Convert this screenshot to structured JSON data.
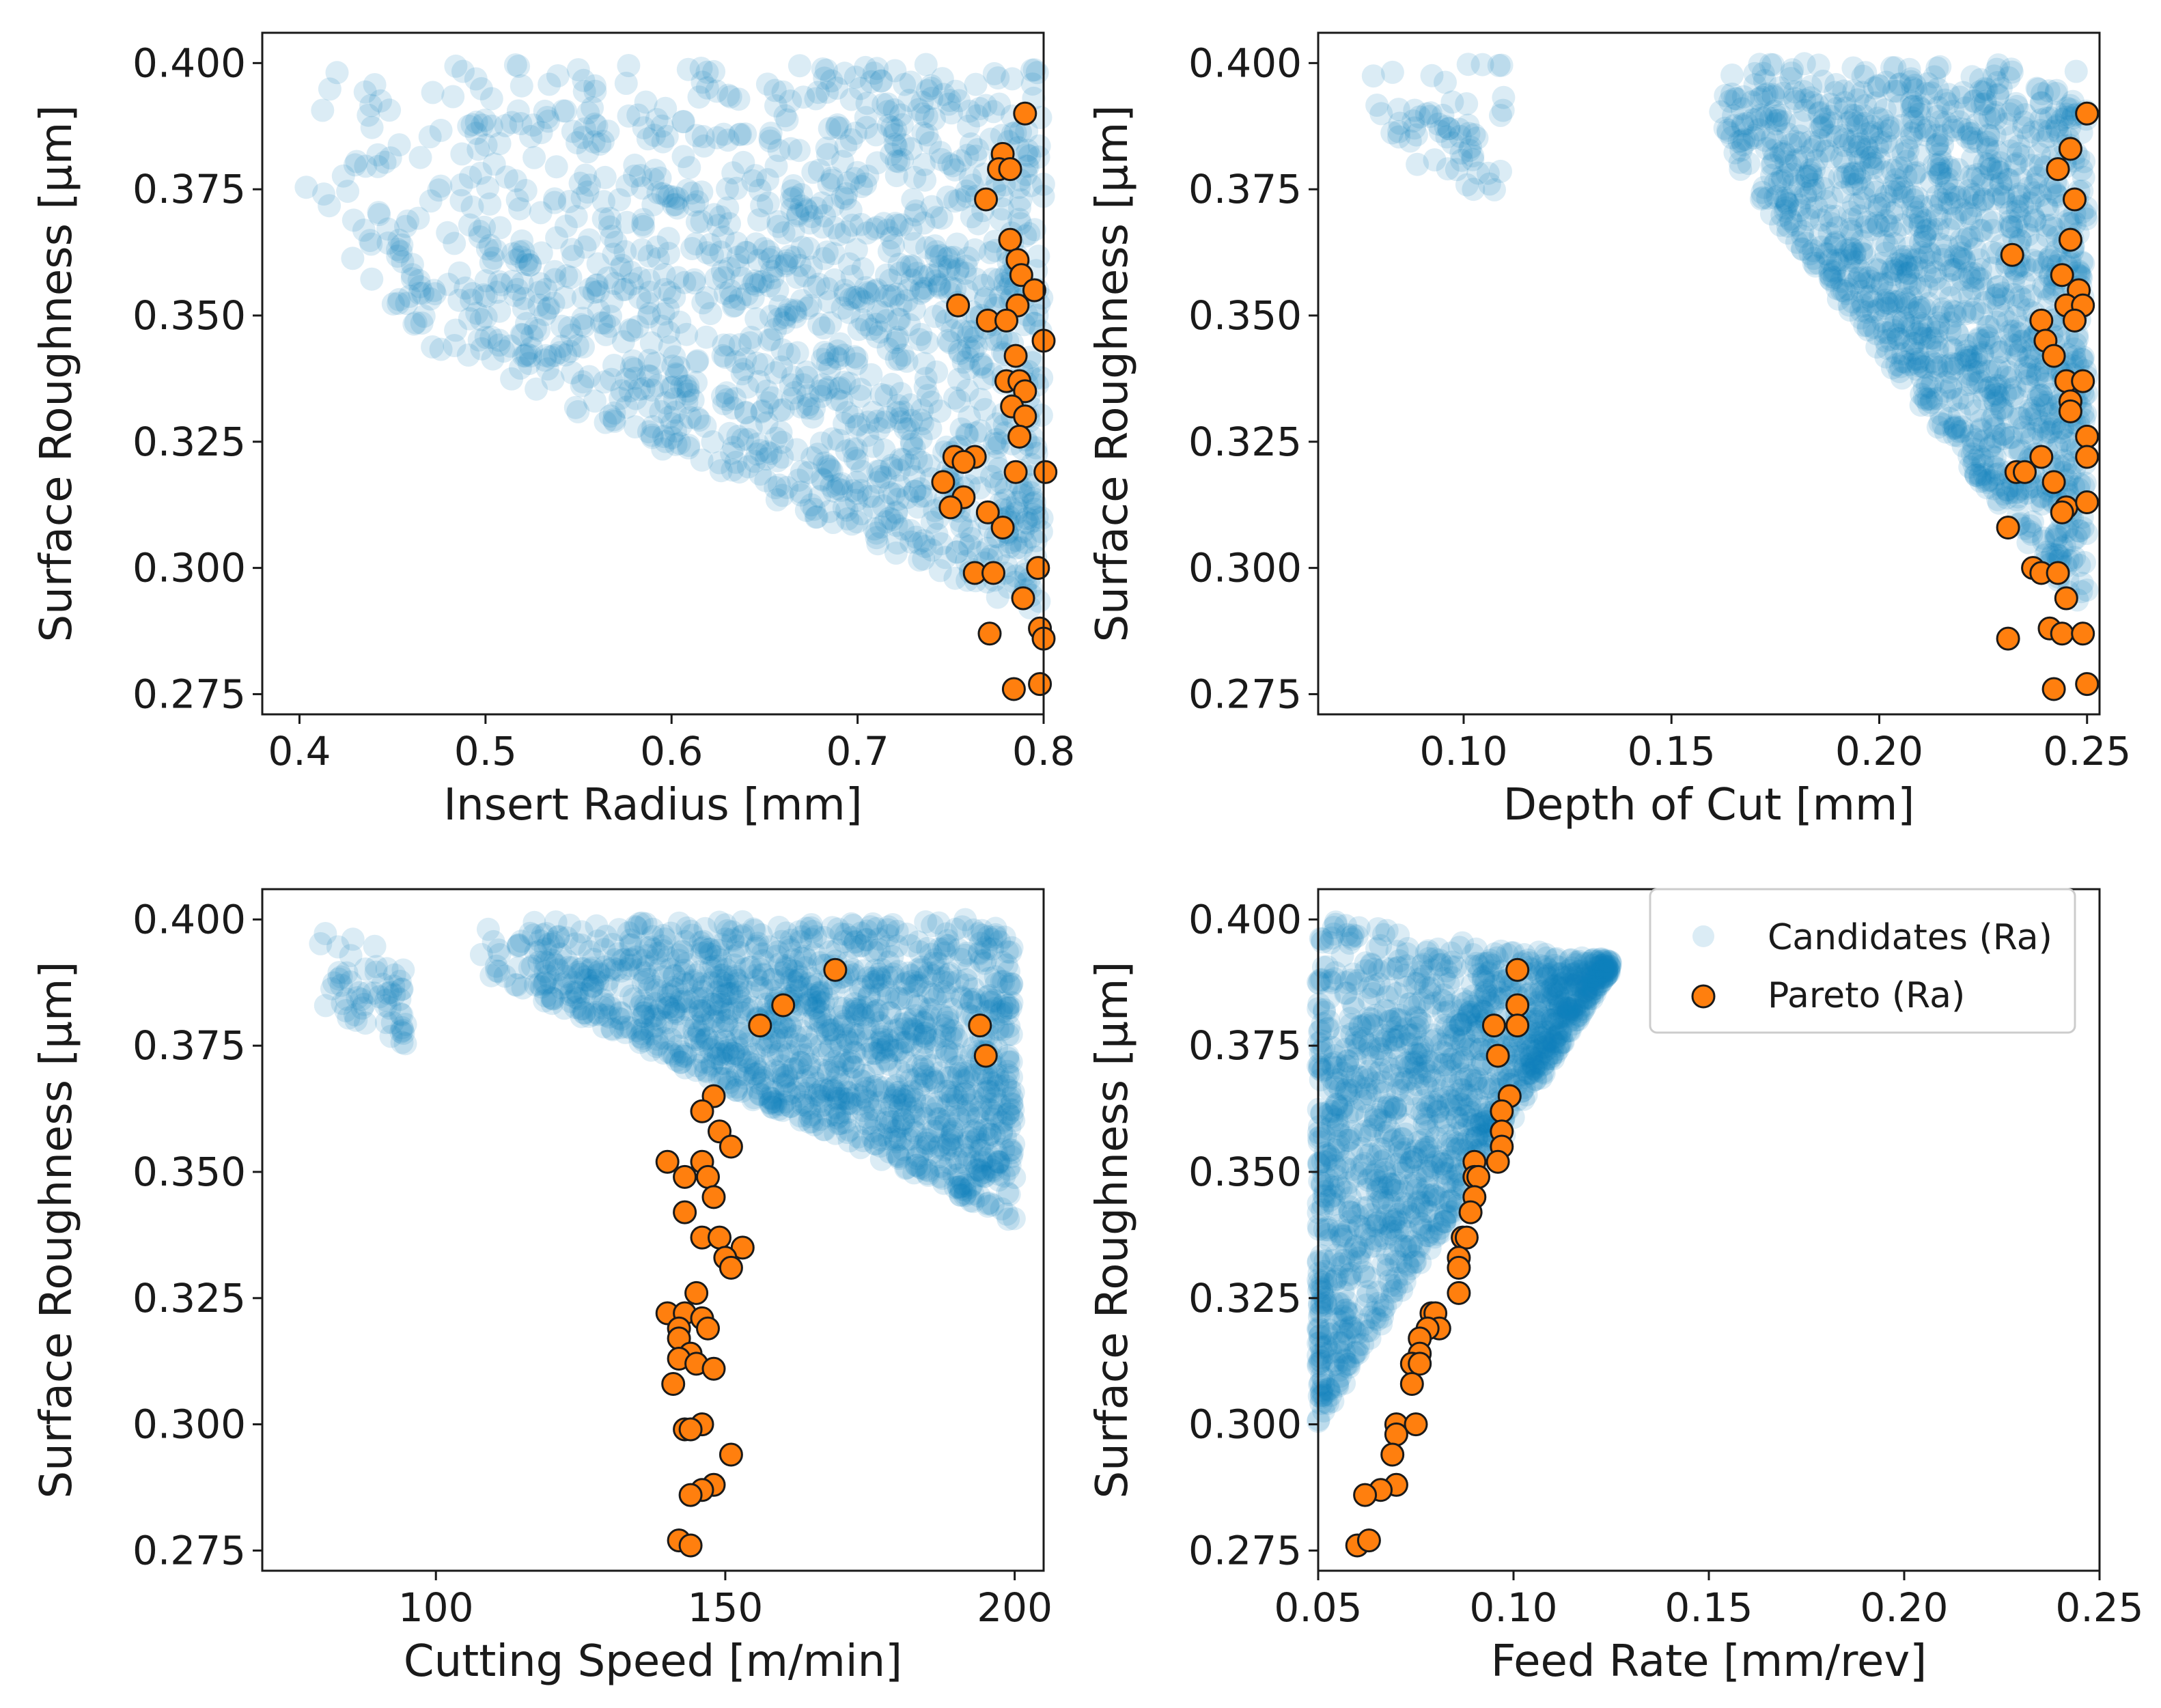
{
  "figure": {
    "y_label": "Surface Roughness [µm]"
  },
  "colors": {
    "candidates": "#0f7fba",
    "pareto_fill": "#ff7f0e",
    "pareto_edge": "#1a1a1a",
    "axis": "#1a1a1a"
  },
  "legend": {
    "candidates_label": "Candidates (Ra)",
    "pareto_label": "Pareto (Ra)",
    "location": "upper-right of panel 4"
  },
  "chart_data": [
    {
      "type": "scatter",
      "panel": "top-left",
      "xlabel": "Insert Radius [mm]",
      "ylabel": "Surface Roughness [µm]",
      "xlim": [
        0.38,
        0.8
      ],
      "ylim": [
        0.271,
        0.406
      ],
      "xticks": [
        0.4,
        0.5,
        0.6,
        0.7,
        0.8
      ],
      "xtick_labels": [
        "0.4",
        "0.5",
        "0.6",
        "0.7",
        "0.8"
      ],
      "yticks": [
        0.275,
        0.3,
        0.325,
        0.35,
        0.375,
        0.4
      ],
      "ytick_labels": [
        "0.275",
        "0.300",
        "0.325",
        "0.350",
        "0.375",
        "0.400"
      ],
      "candidate_regions": [
        {
          "x_range": [
            0.4,
            0.8
          ],
          "y_top": [
            0.4,
            0.4
          ],
          "y_bottom": [
            0.355,
            0.29
          ]
        }
      ],
      "pareto": [
        [
          0.79,
          0.39
        ],
        [
          0.778,
          0.382
        ],
        [
          0.776,
          0.379
        ],
        [
          0.782,
          0.379
        ],
        [
          0.769,
          0.373
        ],
        [
          0.782,
          0.365
        ],
        [
          0.786,
          0.361
        ],
        [
          0.788,
          0.358
        ],
        [
          0.795,
          0.355
        ],
        [
          0.754,
          0.352
        ],
        [
          0.786,
          0.352
        ],
        [
          0.77,
          0.349
        ],
        [
          0.78,
          0.349
        ],
        [
          0.8,
          0.345
        ],
        [
          0.785,
          0.342
        ],
        [
          0.78,
          0.337
        ],
        [
          0.787,
          0.337
        ],
        [
          0.79,
          0.335
        ],
        [
          0.783,
          0.332
        ],
        [
          0.79,
          0.33
        ],
        [
          0.787,
          0.326
        ],
        [
          0.752,
          0.322
        ],
        [
          0.763,
          0.322
        ],
        [
          0.757,
          0.321
        ],
        [
          0.746,
          0.317
        ],
        [
          0.785,
          0.319
        ],
        [
          0.801,
          0.319
        ],
        [
          0.757,
          0.314
        ],
        [
          0.75,
          0.312
        ],
        [
          0.77,
          0.311
        ],
        [
          0.778,
          0.308
        ],
        [
          0.763,
          0.299
        ],
        [
          0.773,
          0.299
        ],
        [
          0.797,
          0.3
        ],
        [
          0.789,
          0.294
        ],
        [
          0.771,
          0.287
        ],
        [
          0.798,
          0.288
        ],
        [
          0.8,
          0.286
        ],
        [
          0.784,
          0.276
        ],
        [
          0.798,
          0.277
        ]
      ]
    },
    {
      "type": "scatter",
      "panel": "top-right",
      "xlabel": "Depth of Cut [mm]",
      "ylabel": "Surface Roughness [µm]",
      "xlim": [
        0.065,
        0.253
      ],
      "ylim": [
        0.271,
        0.406
      ],
      "xticks": [
        0.1,
        0.15,
        0.2,
        0.25
      ],
      "xtick_labels": [
        "0.10",
        "0.15",
        "0.20",
        "0.25"
      ],
      "yticks": [
        0.275,
        0.3,
        0.325,
        0.35,
        0.375,
        0.4
      ],
      "ytick_labels": [
        "0.275",
        "0.300",
        "0.325",
        "0.350",
        "0.375",
        "0.400"
      ],
      "candidate_regions": [
        {
          "x_range": [
            0.075,
            0.11
          ],
          "y_top": [
            0.4,
            0.4
          ],
          "y_bottom": [
            0.385,
            0.372
          ]
        },
        {
          "x_range": [
            0.16,
            0.25
          ],
          "y_top": [
            0.4,
            0.4
          ],
          "y_bottom": [
            0.385,
            0.29
          ]
        }
      ],
      "pareto": [
        [
          0.25,
          0.39
        ],
        [
          0.246,
          0.383
        ],
        [
          0.243,
          0.379
        ],
        [
          0.247,
          0.373
        ],
        [
          0.246,
          0.365
        ],
        [
          0.232,
          0.362
        ],
        [
          0.244,
          0.358
        ],
        [
          0.248,
          0.355
        ],
        [
          0.245,
          0.352
        ],
        [
          0.249,
          0.352
        ],
        [
          0.239,
          0.349
        ],
        [
          0.247,
          0.349
        ],
        [
          0.24,
          0.345
        ],
        [
          0.242,
          0.342
        ],
        [
          0.245,
          0.337
        ],
        [
          0.249,
          0.337
        ],
        [
          0.246,
          0.333
        ],
        [
          0.246,
          0.331
        ],
        [
          0.25,
          0.326
        ],
        [
          0.239,
          0.322
        ],
        [
          0.25,
          0.322
        ],
        [
          0.233,
          0.319
        ],
        [
          0.235,
          0.319
        ],
        [
          0.242,
          0.317
        ],
        [
          0.245,
          0.312
        ],
        [
          0.244,
          0.311
        ],
        [
          0.25,
          0.313
        ],
        [
          0.231,
          0.308
        ],
        [
          0.237,
          0.3
        ],
        [
          0.239,
          0.299
        ],
        [
          0.243,
          0.299
        ],
        [
          0.245,
          0.294
        ],
        [
          0.241,
          0.288
        ],
        [
          0.244,
          0.287
        ],
        [
          0.249,
          0.287
        ],
        [
          0.231,
          0.286
        ],
        [
          0.242,
          0.276
        ],
        [
          0.25,
          0.277
        ]
      ]
    },
    {
      "type": "scatter",
      "panel": "bottom-left",
      "xlabel": "Cutting Speed [m/min]",
      "ylabel": "Surface Roughness [µm]",
      "xlim": [
        70,
        205
      ],
      "ylim": [
        0.271,
        0.406
      ],
      "xticks": [
        100,
        150,
        200
      ],
      "xtick_labels": [
        "100",
        "150",
        "200"
      ],
      "yticks": [
        0.275,
        0.3,
        0.325,
        0.35,
        0.375,
        0.4
      ],
      "ytick_labels": [
        "0.275",
        "0.300",
        "0.325",
        "0.350",
        "0.375",
        "0.400"
      ],
      "candidate_regions": [
        {
          "x_range": [
            75,
            95
          ],
          "y_top": [
            0.398,
            0.396
          ],
          "y_bottom": [
            0.385,
            0.375
          ]
        },
        {
          "x_range": [
            107,
            200
          ],
          "y_top": [
            0.4,
            0.4
          ],
          "y_bottom": [
            0.39,
            0.34
          ]
        }
      ],
      "pareto": [
        [
          169,
          0.39
        ],
        [
          160,
          0.383
        ],
        [
          156,
          0.379
        ],
        [
          194,
          0.379
        ],
        [
          195,
          0.373
        ],
        [
          148,
          0.365
        ],
        [
          146,
          0.362
        ],
        [
          149,
          0.358
        ],
        [
          151,
          0.355
        ],
        [
          140,
          0.352
        ],
        [
          146,
          0.352
        ],
        [
          143,
          0.349
        ],
        [
          147,
          0.349
        ],
        [
          148,
          0.345
        ],
        [
          143,
          0.342
        ],
        [
          146,
          0.337
        ],
        [
          149,
          0.337
        ],
        [
          153,
          0.335
        ],
        [
          150,
          0.333
        ],
        [
          151,
          0.331
        ],
        [
          145,
          0.326
        ],
        [
          140,
          0.322
        ],
        [
          143,
          0.322
        ],
        [
          146,
          0.321
        ],
        [
          142,
          0.319
        ],
        [
          147,
          0.319
        ],
        [
          142,
          0.317
        ],
        [
          144,
          0.314
        ],
        [
          142,
          0.313
        ],
        [
          145,
          0.312
        ],
        [
          148,
          0.311
        ],
        [
          141,
          0.308
        ],
        [
          146,
          0.3
        ],
        [
          143,
          0.299
        ],
        [
          144,
          0.299
        ],
        [
          151,
          0.294
        ],
        [
          148,
          0.288
        ],
        [
          146,
          0.287
        ],
        [
          144,
          0.286
        ],
        [
          142,
          0.277
        ],
        [
          144,
          0.276
        ]
      ]
    },
    {
      "type": "scatter",
      "panel": "bottom-right",
      "xlabel": "Feed Rate [mm/rev]",
      "ylabel": "Surface Roughness [µm]",
      "xlim": [
        0.05,
        0.25
      ],
      "ylim": [
        0.271,
        0.406
      ],
      "xticks": [
        0.05,
        0.1,
        0.15,
        0.2,
        0.25
      ],
      "xtick_labels": [
        "0.05",
        "0.10",
        "0.15",
        "0.20",
        "0.25"
      ],
      "yticks": [
        0.275,
        0.3,
        0.325,
        0.35,
        0.375,
        0.4
      ],
      "ytick_labels": [
        "0.275",
        "0.300",
        "0.325",
        "0.350",
        "0.375",
        "0.400"
      ],
      "candidate_regions": [
        {
          "x_range": [
            0.05,
            0.125
          ],
          "y_top": [
            0.4,
            0.392
          ],
          "y_bottom": [
            0.3,
            0.39
          ]
        }
      ],
      "pareto": [
        [
          0.101,
          0.39
        ],
        [
          0.101,
          0.383
        ],
        [
          0.095,
          0.379
        ],
        [
          0.101,
          0.379
        ],
        [
          0.096,
          0.373
        ],
        [
          0.099,
          0.365
        ],
        [
          0.097,
          0.362
        ],
        [
          0.097,
          0.358
        ],
        [
          0.097,
          0.355
        ],
        [
          0.09,
          0.352
        ],
        [
          0.096,
          0.352
        ],
        [
          0.09,
          0.349
        ],
        [
          0.091,
          0.349
        ],
        [
          0.09,
          0.345
        ],
        [
          0.089,
          0.342
        ],
        [
          0.087,
          0.337
        ],
        [
          0.088,
          0.337
        ],
        [
          0.086,
          0.333
        ],
        [
          0.086,
          0.331
        ],
        [
          0.086,
          0.326
        ],
        [
          0.079,
          0.322
        ],
        [
          0.08,
          0.322
        ],
        [
          0.081,
          0.319
        ],
        [
          0.078,
          0.319
        ],
        [
          0.076,
          0.317
        ],
        [
          0.076,
          0.314
        ],
        [
          0.074,
          0.312
        ],
        [
          0.076,
          0.312
        ],
        [
          0.074,
          0.308
        ],
        [
          0.07,
          0.3
        ],
        [
          0.075,
          0.3
        ],
        [
          0.07,
          0.298
        ],
        [
          0.069,
          0.294
        ],
        [
          0.07,
          0.288
        ],
        [
          0.066,
          0.287
        ],
        [
          0.062,
          0.286
        ],
        [
          0.06,
          0.276
        ],
        [
          0.063,
          0.277
        ]
      ]
    }
  ]
}
